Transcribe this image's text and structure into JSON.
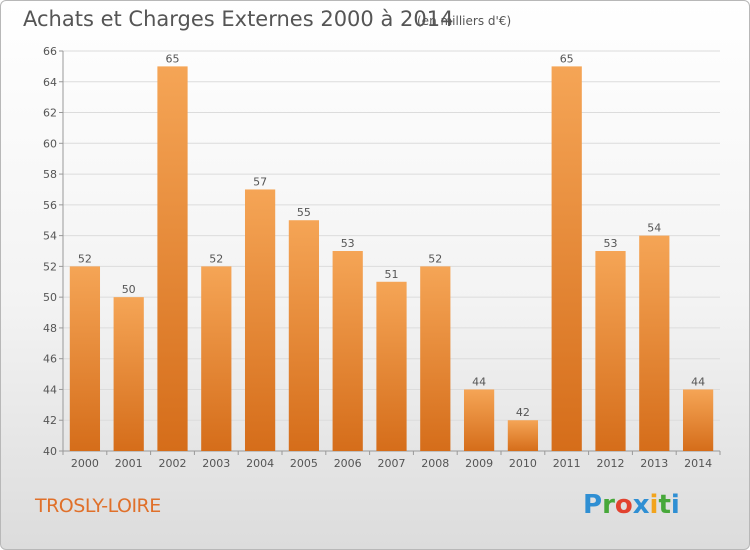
{
  "header": {
    "title": "Achats et Charges Externes 2000 à 2014",
    "unit": "(en milliers d'€)"
  },
  "footer": {
    "commune": "TROSLY-LOIRE",
    "logo": {
      "letters": [
        "P",
        "r",
        "o",
        "x",
        "i",
        "t",
        "i"
      ],
      "colors": [
        "#2f8fd3",
        "#47a83a",
        "#e2422f",
        "#2f8fd3",
        "#f2a41c",
        "#47a83a",
        "#2f8fd3"
      ]
    }
  },
  "chart_data": {
    "type": "bar",
    "title": "Achats et Charges Externes 2000 à 2014",
    "categories": [
      "2000",
      "2001",
      "2002",
      "2003",
      "2004",
      "2005",
      "2006",
      "2007",
      "2008",
      "2009",
      "2010",
      "2011",
      "2012",
      "2013",
      "2014"
    ],
    "values": [
      52,
      50,
      65,
      52,
      57,
      55,
      53,
      51,
      52,
      44,
      42,
      65,
      53,
      54,
      44
    ],
    "ylim": [
      40,
      66
    ],
    "yticks": [
      40,
      42,
      44,
      46,
      48,
      50,
      52,
      54,
      56,
      58,
      60,
      62,
      64,
      66
    ],
    "grid": true,
    "bar_color_top": "#f5a556",
    "bar_color_bottom": "#d56d1a"
  }
}
